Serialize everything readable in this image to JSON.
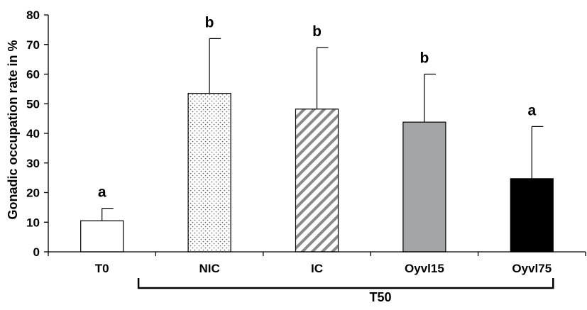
{
  "chart_data": {
    "type": "bar",
    "title": "",
    "xlabel": "",
    "ylabel": "Gonadic occupation rate in %",
    "ylim": [
      0,
      80
    ],
    "yticks": [
      0,
      10,
      20,
      30,
      40,
      50,
      60,
      70,
      80
    ],
    "grid": false,
    "categories": [
      "T0",
      "NIC",
      "IC",
      "Oyvl15",
      "Oyvl75"
    ],
    "values": [
      10.5,
      53.5,
      48.2,
      43.8,
      24.7
    ],
    "error_upper": [
      14.7,
      72,
      69,
      60,
      42.3
    ],
    "significance": [
      "a",
      "b",
      "b",
      "b",
      "a"
    ],
    "fill_styles": [
      "white",
      "dotted",
      "hatched",
      "gray",
      "black"
    ],
    "colors": {
      "gray": "#a4a5a7",
      "black": "#000000",
      "outline": "#000000"
    },
    "group_bracket": {
      "label": "T50",
      "spans": [
        "NIC",
        "Oyvl75"
      ]
    }
  }
}
